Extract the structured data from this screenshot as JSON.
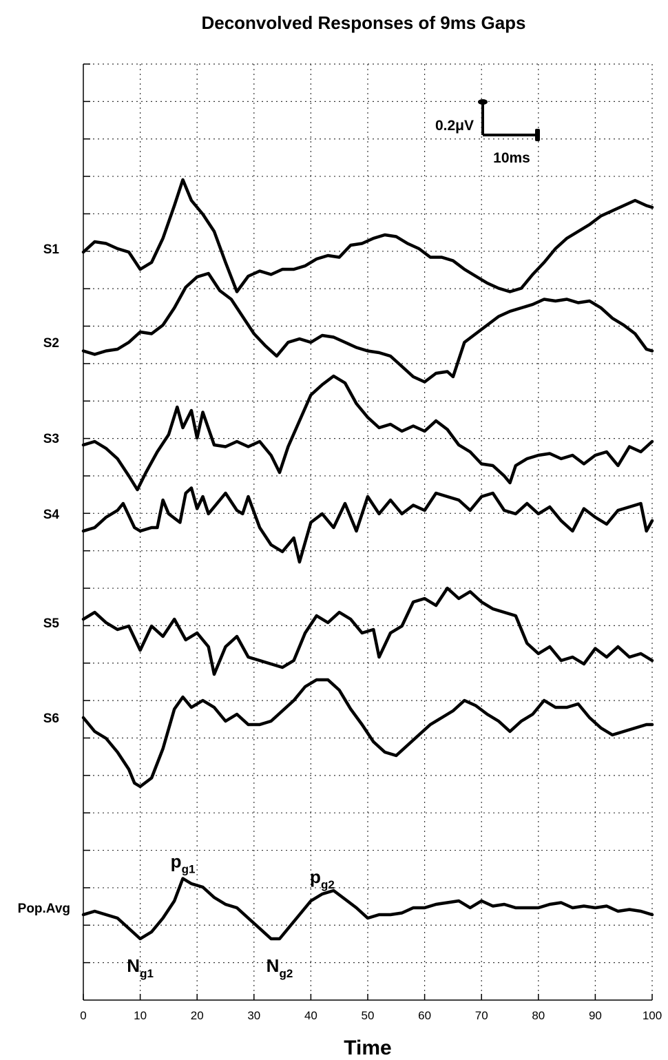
{
  "chart_data": {
    "type": "line",
    "title": "Deconvolved Responses of 9ms Gaps",
    "xlabel": "Time",
    "ylabel": "",
    "xlim": [
      0,
      100
    ],
    "xticks": [
      0,
      10,
      20,
      30,
      40,
      50,
      60,
      70,
      80,
      90,
      100
    ],
    "grid": true,
    "scale_bar": {
      "amplitude_label": "0.2μV",
      "time_label": "10ms",
      "time_ms": 10
    },
    "series": [
      {
        "name": "S1",
        "x": [
          0,
          2,
          4,
          6,
          8,
          10,
          12,
          14,
          16,
          17.5,
          19,
          21,
          23,
          25,
          27,
          29,
          31,
          33,
          35,
          37,
          39,
          41,
          43,
          45,
          47,
          49,
          51,
          53,
          55,
          57,
          59,
          61,
          63,
          65,
          67,
          69,
          71,
          73,
          75,
          77,
          79,
          81,
          83,
          85,
          87,
          89,
          91,
          93,
          95,
          97,
          99,
          100
        ],
        "y": [
          -0.02,
          0.04,
          0.03,
          0.0,
          -0.02,
          -0.12,
          -0.08,
          0.06,
          0.25,
          0.4,
          0.28,
          0.2,
          0.1,
          -0.08,
          -0.25,
          -0.16,
          -0.13,
          -0.15,
          -0.12,
          -0.12,
          -0.1,
          -0.06,
          -0.04,
          -0.05,
          0.02,
          0.03,
          0.06,
          0.08,
          0.07,
          0.03,
          0.0,
          -0.05,
          -0.05,
          -0.07,
          -0.12,
          -0.16,
          -0.2,
          -0.23,
          -0.25,
          -0.23,
          -0.15,
          -0.08,
          0.0,
          0.06,
          0.1,
          0.14,
          0.19,
          0.22,
          0.25,
          0.28,
          0.25,
          0.24
        ]
      },
      {
        "name": "S2",
        "x": [
          0,
          2,
          4,
          6,
          8,
          10,
          12,
          14,
          16,
          18,
          20,
          22,
          24,
          26,
          28,
          30,
          32,
          34,
          36,
          38,
          40,
          42,
          44,
          46,
          48,
          50,
          52,
          54,
          56,
          58,
          60,
          62,
          64,
          65,
          67,
          69,
          71,
          73,
          75,
          77,
          79,
          81,
          83,
          85,
          87,
          89,
          91,
          93,
          95,
          97,
          99,
          100
        ],
        "y": [
          -0.05,
          -0.07,
          -0.05,
          -0.04,
          0.0,
          0.06,
          0.05,
          0.1,
          0.2,
          0.32,
          0.38,
          0.4,
          0.3,
          0.25,
          0.15,
          0.05,
          -0.02,
          -0.08,
          0.0,
          0.02,
          0.0,
          0.04,
          0.03,
          0.0,
          -0.03,
          -0.05,
          -0.06,
          -0.08,
          -0.14,
          -0.2,
          -0.23,
          -0.18,
          -0.17,
          -0.2,
          0.0,
          0.05,
          0.1,
          0.15,
          0.18,
          0.2,
          0.22,
          0.25,
          0.24,
          0.25,
          0.23,
          0.24,
          0.2,
          0.14,
          0.1,
          0.05,
          -0.04,
          -0.05
        ]
      },
      {
        "name": "S3",
        "x": [
          0,
          2,
          4,
          6,
          8,
          9.5,
          11,
          13,
          15,
          16.5,
          17.5,
          19,
          20,
          21,
          23,
          25,
          27,
          29,
          31,
          33,
          34.5,
          36,
          38,
          40,
          42,
          44,
          46,
          48,
          50,
          52,
          54,
          56,
          58,
          60,
          62,
          64,
          66,
          68,
          70,
          72,
          74,
          75,
          76,
          78,
          80,
          82,
          84,
          86,
          88,
          90,
          92,
          94,
          96,
          98,
          100
        ],
        "y": [
          -0.04,
          -0.02,
          -0.06,
          -0.12,
          -0.22,
          -0.3,
          -0.2,
          -0.08,
          0.02,
          0.18,
          0.06,
          0.16,
          0.0,
          0.15,
          -0.04,
          -0.05,
          -0.02,
          -0.05,
          -0.02,
          -0.1,
          -0.2,
          -0.05,
          0.1,
          0.25,
          0.31,
          0.36,
          0.32,
          0.2,
          0.12,
          0.06,
          0.08,
          0.04,
          0.07,
          0.04,
          0.1,
          0.05,
          -0.04,
          -0.08,
          -0.15,
          -0.16,
          -0.22,
          -0.26,
          -0.16,
          -0.12,
          -0.1,
          -0.09,
          -0.12,
          -0.1,
          -0.15,
          -0.1,
          -0.08,
          -0.16,
          -0.05,
          -0.08,
          -0.02
        ]
      },
      {
        "name": "S4",
        "x": [
          0,
          2,
          4,
          6,
          7,
          9,
          10,
          12,
          13,
          14,
          15,
          17,
          18,
          19,
          20,
          21,
          22,
          23,
          25,
          27,
          28,
          29,
          31,
          33,
          35,
          37,
          38,
          40,
          42,
          44,
          46,
          48,
          50,
          52,
          54,
          56,
          58,
          60,
          62,
          64,
          66,
          68,
          70,
          72,
          74,
          76,
          78,
          80,
          82,
          84,
          86,
          88,
          90,
          92,
          94,
          96,
          98,
          99,
          100
        ],
        "y": [
          -0.1,
          -0.08,
          -0.02,
          0.02,
          0.06,
          -0.08,
          -0.1,
          -0.08,
          -0.08,
          0.08,
          0.0,
          -0.05,
          0.12,
          0.15,
          0.03,
          0.1,
          0.0,
          0.04,
          0.12,
          0.02,
          0.0,
          0.1,
          -0.08,
          -0.18,
          -0.22,
          -0.14,
          -0.28,
          -0.05,
          0.0,
          -0.08,
          0.06,
          -0.1,
          0.1,
          0.0,
          0.08,
          0.0,
          0.05,
          0.02,
          0.12,
          0.1,
          0.08,
          0.02,
          0.1,
          0.12,
          0.02,
          0.0,
          0.06,
          0.0,
          0.04,
          -0.04,
          -0.1,
          0.03,
          -0.02,
          -0.06,
          0.02,
          0.04,
          0.06,
          -0.1,
          -0.04
        ]
      },
      {
        "name": "S5",
        "x": [
          0,
          2,
          4,
          6,
          8,
          10,
          12,
          14,
          16,
          18,
          20,
          22,
          23,
          25,
          27,
          29,
          31,
          33,
          35,
          37,
          39,
          41,
          43,
          45,
          47,
          49,
          51,
          52,
          54,
          56,
          58,
          60,
          62,
          64,
          66,
          68,
          70,
          72,
          74,
          76,
          78,
          80,
          82,
          84,
          86,
          88,
          90,
          92,
          94,
          96,
          98,
          100
        ],
        "y": [
          0.02,
          0.06,
          0.0,
          -0.04,
          -0.02,
          -0.16,
          -0.02,
          -0.08,
          0.02,
          -0.1,
          -0.06,
          -0.14,
          -0.3,
          -0.14,
          -0.08,
          -0.2,
          -0.22,
          -0.24,
          -0.26,
          -0.22,
          -0.06,
          0.04,
          0.0,
          0.06,
          0.02,
          -0.06,
          -0.04,
          -0.2,
          -0.06,
          -0.02,
          0.12,
          0.14,
          0.1,
          0.2,
          0.14,
          0.18,
          0.12,
          0.08,
          0.06,
          0.04,
          -0.12,
          -0.18,
          -0.14,
          -0.22,
          -0.2,
          -0.24,
          -0.15,
          -0.2,
          -0.14,
          -0.2,
          -0.18,
          -0.22
        ]
      },
      {
        "name": "S6",
        "x": [
          0,
          2,
          4,
          6,
          8,
          9,
          10,
          12,
          14,
          16,
          17.5,
          19,
          21,
          23,
          25,
          27,
          29,
          31,
          33,
          35,
          37,
          39,
          41,
          43,
          45,
          47,
          49,
          51,
          53,
          55,
          57,
          59,
          61,
          63,
          65,
          67,
          69,
          71,
          73,
          75,
          77,
          79,
          81,
          83,
          85,
          87,
          89,
          91,
          93,
          95,
          97,
          99,
          100
        ],
        "y": [
          0.0,
          -0.08,
          -0.12,
          -0.2,
          -0.3,
          -0.38,
          -0.4,
          -0.35,
          -0.18,
          0.05,
          0.12,
          0.06,
          0.1,
          0.06,
          -0.02,
          0.02,
          -0.04,
          -0.04,
          -0.02,
          0.04,
          0.1,
          0.18,
          0.22,
          0.22,
          0.16,
          0.05,
          -0.04,
          -0.14,
          -0.2,
          -0.22,
          -0.16,
          -0.1,
          -0.04,
          0.0,
          0.04,
          0.1,
          0.07,
          0.02,
          -0.02,
          -0.08,
          -0.02,
          0.02,
          0.1,
          0.06,
          0.06,
          0.08,
          0.0,
          -0.06,
          -0.1,
          -0.08,
          -0.06,
          -0.04,
          -0.04
        ]
      },
      {
        "name": "Pop.Avg",
        "x": [
          0,
          2,
          4,
          6,
          8,
          10,
          12,
          14,
          16,
          17.5,
          19,
          21,
          23,
          25,
          27,
          29,
          31,
          33,
          34.5,
          36,
          38,
          40,
          42,
          44,
          46,
          48,
          50,
          52,
          54,
          56,
          58,
          60,
          62,
          64,
          66,
          68,
          70,
          72,
          74,
          76,
          78,
          80,
          82,
          84,
          86,
          88,
          90,
          92,
          94,
          96,
          98,
          100
        ],
        "y": [
          -0.04,
          -0.02,
          -0.04,
          -0.06,
          -0.12,
          -0.18,
          -0.14,
          -0.06,
          0.04,
          0.17,
          0.14,
          0.12,
          0.06,
          0.02,
          0.0,
          -0.06,
          -0.12,
          -0.18,
          -0.18,
          -0.12,
          -0.04,
          0.04,
          0.08,
          0.1,
          0.05,
          0.0,
          -0.06,
          -0.04,
          -0.04,
          -0.03,
          0.0,
          0.0,
          0.02,
          0.03,
          0.04,
          0.0,
          0.04,
          0.01,
          0.02,
          0.0,
          0.0,
          0.0,
          0.02,
          0.03,
          0.0,
          0.01,
          0.0,
          0.01,
          -0.02,
          -0.01,
          -0.02,
          -0.04
        ]
      }
    ],
    "annotations": [
      {
        "main": "p",
        "sub": "g1",
        "x": 17.5,
        "series": "Pop.Avg",
        "position": "above"
      },
      {
        "main": "N",
        "sub": "g1",
        "x": 10,
        "series": "Pop.Avg",
        "position": "below"
      },
      {
        "main": "N",
        "sub": "g2",
        "x": 34.5,
        "series": "Pop.Avg",
        "position": "below"
      },
      {
        "main": "p",
        "sub": "g2",
        "x": 42,
        "series": "Pop.Avg",
        "position": "above"
      }
    ]
  }
}
